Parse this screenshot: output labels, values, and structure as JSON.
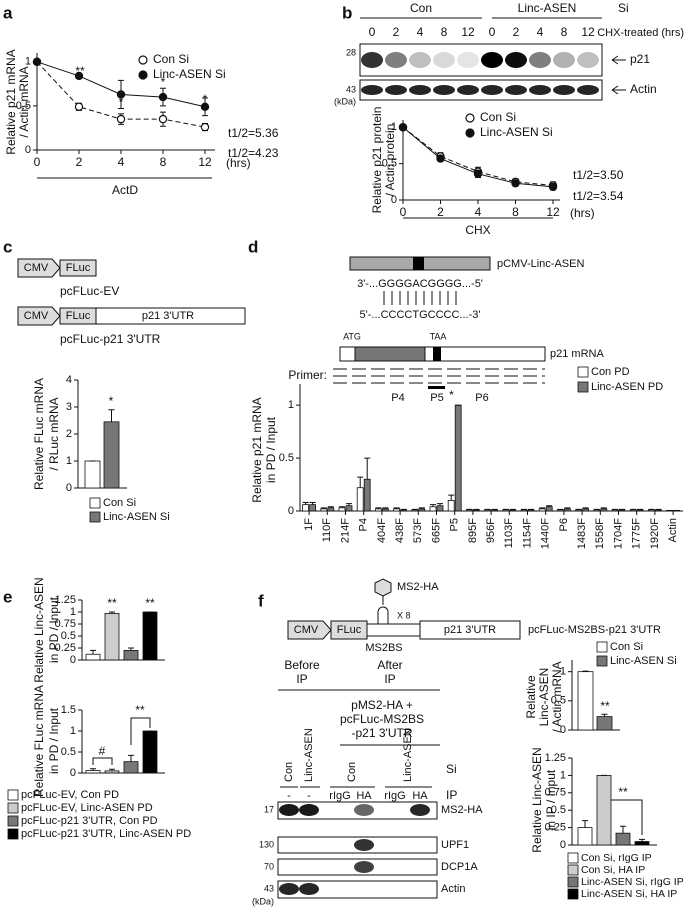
{
  "panel_labels": [
    "a",
    "b",
    "c",
    "d",
    "e",
    "f"
  ],
  "blot_b": {
    "groups": [
      "Con",
      "Linc-ASEN"
    ],
    "group_title": "Si",
    "condition": "CHX-treated (hrs)",
    "lanes": [
      "0",
      "2",
      "4",
      "8",
      "12",
      "0",
      "2",
      "4",
      "8",
      "12"
    ],
    "markers": [
      "28",
      "43"
    ],
    "marker_unit": "(kDa)",
    "proteins": [
      "p21",
      "Actin"
    ]
  },
  "diagram_c": {
    "constructs": [
      {
        "name": "pcFLuc-EV",
        "parts": [
          "CMV",
          "FLuc"
        ]
      },
      {
        "name": "pcFLuc-p21 3'UTR",
        "parts": [
          "CMV",
          "FLuc",
          "p21 3'UTR"
        ]
      }
    ]
  },
  "diagram_d": {
    "plasmid": "pCMV-Linc-ASEN",
    "linc_seq": "3'-...GGGGACGGGG...-5'",
    "mrna_seq": "5'-...CCCCTGCCCC...-3'",
    "start_codon": "ATG",
    "stop_codon": "TAA",
    "mrna": "p21 mRNA",
    "primer_label": "Primer:",
    "primers": [
      "P4",
      "P5",
      "P6"
    ]
  },
  "diagram_f": {
    "tag": "MS2-HA",
    "parts": [
      "CMV",
      "FLuc",
      "p21 3'UTR"
    ],
    "repeat": "X 8",
    "binding_site": "MS2BS",
    "construct": "pcFLuc-MS2BS-p21 3'UTR"
  },
  "blot_f": {
    "stages": [
      [
        "Before",
        "IP"
      ],
      [
        "After",
        "IP"
      ]
    ],
    "transfection": [
      "pMS2-HA +",
      "pcFLuc-MS2BS",
      "-p21 3'UTR"
    ],
    "si_lanes": [
      "Con",
      "Linc-ASEN",
      "Con",
      "Linc-ASEN"
    ],
    "si_label": "Si",
    "ip_lanes": [
      "-",
      "-",
      "rIgG",
      "HA",
      "rIgG",
      "HA"
    ],
    "ip_label": "IP",
    "markers": [
      "17",
      "130",
      "70",
      "43"
    ],
    "marker_unit": "(kDa)",
    "proteins": [
      "MS2-HA",
      "UPF1",
      "DCP1A",
      "Actin"
    ]
  },
  "chart_data": [
    {
      "type": "line",
      "categories": [
        "0",
        "2",
        "4",
        "8",
        "12"
      ],
      "xunit": "(hrs)",
      "xlabel": "ActD",
      "ylabel": [
        "Relative p21 mRNA",
        "/ Actin mRNA"
      ],
      "ylim": [
        0,
        1.1
      ],
      "yticks": [
        0,
        0.5,
        1
      ],
      "series": [
        {
          "name": "Con Si",
          "color": "#111111",
          "marker": "open",
          "line": "dashed",
          "values": [
            1,
            0.49,
            0.35,
            0.35,
            0.26
          ],
          "errors": [
            0,
            0.04,
            0.06,
            0.08,
            0.04
          ]
        },
        {
          "name": "Linc-ASEN Si",
          "color": "#111111",
          "marker": "filled",
          "line": "solid",
          "values": [
            1,
            0.84,
            0.63,
            0.6,
            0.49
          ],
          "errors": [
            0,
            0.02,
            0.16,
            0.1,
            0.1
          ]
        }
      ],
      "annotations": [
        "**",
        "*",
        "*",
        "*"
      ],
      "half_lives": [
        "t1/2=5.36",
        "t1/2=4.23"
      ]
    },
    {
      "type": "line",
      "categories": [
        "0",
        "2",
        "4",
        "8",
        "12"
      ],
      "xunit": "(hrs)",
      "xlabel": "CHX",
      "ylabel": [
        "Relative p21 protein",
        "/ Actin protein"
      ],
      "ylim": [
        0,
        1.1
      ],
      "yticks": [
        0,
        0.5,
        1
      ],
      "series": [
        {
          "name": "Con Si",
          "color": "#111111",
          "marker": "open",
          "line": "dashed",
          "values": [
            1,
            0.6,
            0.39,
            0.25,
            0.2
          ],
          "errors": [
            0,
            0.05,
            0.06,
            0.04,
            0.05
          ]
        },
        {
          "name": "Linc-ASEN Si",
          "color": "#111111",
          "marker": "filled",
          "line": "solid",
          "values": [
            1,
            0.57,
            0.36,
            0.23,
            0.18
          ],
          "errors": [
            0,
            0.04,
            0.05,
            0.04,
            0.04
          ]
        }
      ],
      "annotations": [],
      "half_lives": [
        "t1/2=3.50",
        "t1/2=3.54"
      ]
    },
    {
      "type": "bar",
      "categories": [
        null
      ],
      "ylabel": [
        "Relative FLuc mRNA",
        "/ RLuc mRNA"
      ],
      "ylim": [
        0,
        4
      ],
      "yticks": [
        0,
        1,
        2,
        3,
        4
      ],
      "series": [
        {
          "name": "Con Si",
          "color": "#ffffff",
          "values": [
            1
          ],
          "errors": [
            0
          ]
        },
        {
          "name": "Linc-ASEN Si",
          "color": "#777777",
          "values": [
            2.45
          ],
          "errors": [
            0.45
          ]
        }
      ],
      "annotations": [
        "*"
      ]
    },
    {
      "type": "bar",
      "categories": [
        "1F",
        "110F",
        "214F",
        "P4",
        "404F",
        "438F",
        "573F",
        "665F",
        "P5",
        "895F",
        "956F",
        "1103F",
        "1154F",
        "1440F",
        "P6",
        "1483F",
        "1558F",
        "1704F",
        "1775F",
        "1920F",
        "Actin"
      ],
      "ylabel": [
        "Relative p21 mRNA",
        "in PD / Input"
      ],
      "ylim": [
        0,
        1.2
      ],
      "yticks": [
        0,
        0.5,
        1
      ],
      "series": [
        {
          "name": "Con PD",
          "color": "#ffffff",
          "values": [
            0.06,
            0.02,
            0.03,
            0.22,
            0.02,
            0.02,
            0.01,
            0.04,
            0.1,
            0.01,
            0.01,
            0.01,
            0.01,
            0.02,
            0.01,
            0.01,
            0.01,
            0.01,
            0.01,
            0.01,
            0.005
          ],
          "errors": [
            0.02,
            0.01,
            0.01,
            0.1,
            0.01,
            0.01,
            0.005,
            0.02,
            0.05,
            0.005,
            0.005,
            0.005,
            0.005,
            0.01,
            0.005,
            0.005,
            0.005,
            0.005,
            0.005,
            0.005,
            0
          ]
        },
        {
          "name": "Linc-ASEN PD",
          "color": "#777777",
          "values": [
            0.06,
            0.03,
            0.05,
            0.3,
            0.02,
            0.01,
            0.02,
            0.05,
            1,
            0.01,
            0.01,
            0.01,
            0.01,
            0.04,
            0.02,
            0.02,
            0.02,
            0.01,
            0.01,
            0.01,
            0.005
          ],
          "errors": [
            0.02,
            0.01,
            0.02,
            0.2,
            0.01,
            0.005,
            0.01,
            0.02,
            0,
            0.005,
            0.005,
            0.005,
            0.005,
            0.01,
            0.01,
            0.01,
            0.01,
            0.005,
            0.005,
            0.005,
            0
          ]
        }
      ],
      "annotations": [
        "*"
      ]
    },
    {
      "type": "bar",
      "categories": [
        null,
        null,
        null,
        null
      ],
      "values": [
        0.12,
        0.97,
        0.2,
        1
      ],
      "errors": [
        0.08,
        0.03,
        0.05,
        0
      ],
      "colors": [
        "#ffffff",
        "#cccccc",
        "#777777",
        "#000000"
      ],
      "ylabel": [
        "Relative Linc-ASEN",
        "in PD / Input"
      ],
      "ylim": [
        0,
        1.25
      ],
      "yticks": [
        0,
        0.25,
        0.5,
        0.75,
        1,
        1.25
      ],
      "annotations": [
        "**",
        "**"
      ]
    },
    {
      "type": "bar",
      "categories": [
        null
      ],
      "ylabel": [
        "Relative FLuc mRNA",
        "in PD / Input"
      ],
      "ylim": [
        0,
        1.5
      ],
      "yticks": [
        0,
        0.5,
        1,
        1.5
      ],
      "series": [
        {
          "name": "pcFLuc-EV, Con PD",
          "color": "#ffffff",
          "values": [
            0.06
          ],
          "errors": [
            0.04
          ]
        },
        {
          "name": "pcFLuc-EV, Linc-ASEN PD",
          "color": "#cccccc",
          "values": [
            0.05
          ],
          "errors": [
            0.04
          ]
        },
        {
          "name": "pcFLuc-p21 3'UTR, Con PD",
          "color": "#777777",
          "values": [
            0.27
          ],
          "errors": [
            0.15
          ]
        },
        {
          "name": "pcFLuc-p21 3'UTR, Linc-ASEN PD",
          "color": "#000000",
          "values": [
            1
          ],
          "errors": [
            0
          ]
        }
      ],
      "annotations": [
        "#",
        "**"
      ]
    },
    {
      "type": "bar",
      "categories": [
        null
      ],
      "ylabel": [
        "Relative",
        "Linc-ASEN",
        "/ Actin mRNA"
      ],
      "ylim": [
        0,
        1.2
      ],
      "yticks": [
        0,
        0.5,
        1
      ],
      "series": [
        {
          "name": "Con Si",
          "color": "#ffffff",
          "values": [
            1
          ],
          "errors": [
            0.01
          ]
        },
        {
          "name": "Linc-ASEN Si",
          "color": "#777777",
          "values": [
            0.23
          ],
          "errors": [
            0.04
          ]
        }
      ],
      "annotations": [
        "**"
      ]
    },
    {
      "type": "bar",
      "categories": [
        null
      ],
      "ylabel": [
        "Relative Linc-ASEN",
        "in IP / Input"
      ],
      "ylim": [
        0,
        1.25
      ],
      "yticks": [
        0,
        0.25,
        0.5,
        0.75,
        1,
        1.25
      ],
      "series": [
        {
          "name": "Con Si, rIgG IP",
          "color": "#ffffff",
          "values": [
            0.25
          ],
          "errors": [
            0.1
          ]
        },
        {
          "name": "Con Si, HA IP",
          "color": "#cccccc",
          "values": [
            1
          ],
          "errors": [
            0
          ]
        },
        {
          "name": "Linc-ASEN Si, rIgG IP",
          "color": "#777777",
          "values": [
            0.17
          ],
          "errors": [
            0.1
          ]
        },
        {
          "name": "Linc-ASEN Si, HA IP",
          "color": "#000000",
          "values": [
            0.05
          ],
          "errors": [
            0.03
          ]
        }
      ],
      "annotations": [
        "**"
      ]
    }
  ]
}
